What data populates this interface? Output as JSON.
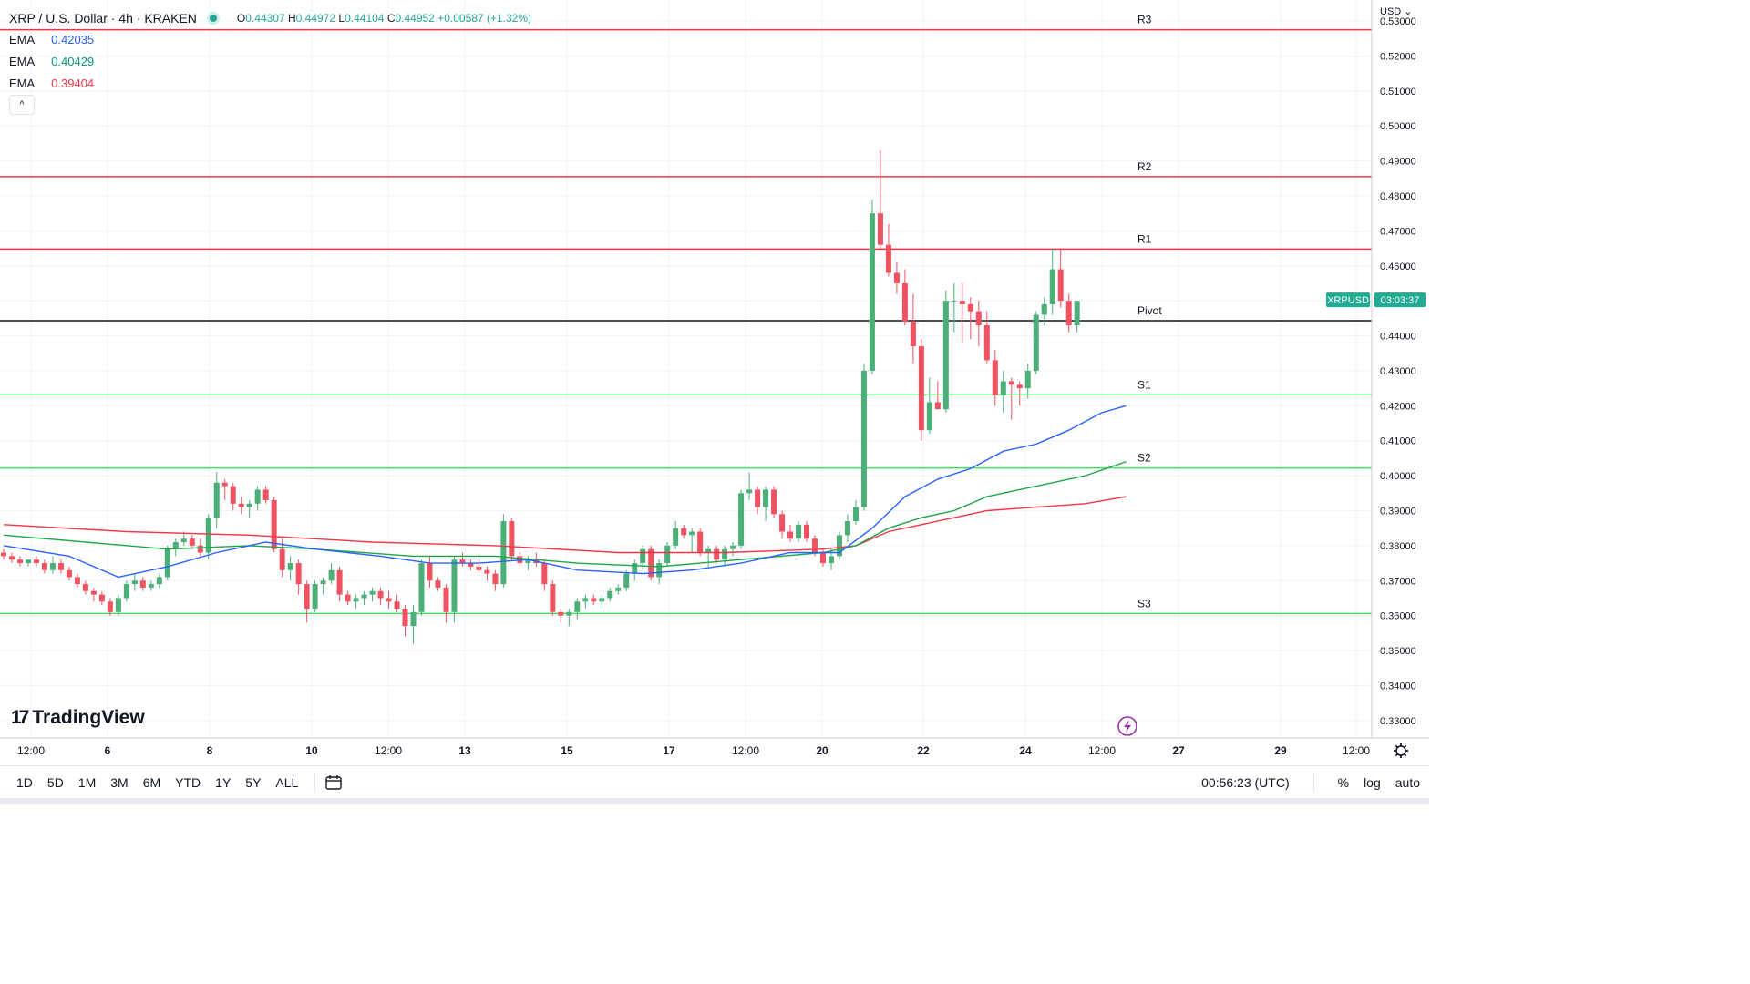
{
  "header": {
    "symbol_title": "XRP / U.S. Dollar · 4h · KRAKEN",
    "open_label": "O",
    "open": "0.44307",
    "high_label": "H",
    "high": "0.44972",
    "low_label": "L",
    "low": "0.44104",
    "close_label": "C",
    "close": "0.44952",
    "change": "+0.00587 (+1.32%)"
  },
  "indicators": [
    {
      "label": "EMA",
      "value": "0.42035",
      "color": "#2962ff"
    },
    {
      "label": "EMA",
      "value": "0.40429",
      "color": "#089981"
    },
    {
      "label": "EMA",
      "value": "0.39404",
      "color": "#f23645"
    }
  ],
  "collapse_icon": "chevron-up-icon",
  "currency": "USD",
  "price_tag": {
    "symbol": "XRPUSD",
    "countdown": "03:03:37"
  },
  "colors": {
    "up": "#4caf78",
    "down": "#ef5361",
    "resistance": "#f23645",
    "support": "#4cd964",
    "pivot": "#131722",
    "ema_fast": "#2962ff",
    "ema_mid": "#1fa64a",
    "ema_slow": "#f23645",
    "grid": "#f0f3fa"
  },
  "bottom_bar": {
    "ranges": [
      "1D",
      "5D",
      "1M",
      "3M",
      "6M",
      "YTD",
      "1Y",
      "5Y",
      "ALL"
    ],
    "compare_icon": "calendar-range-icon",
    "clock": "00:56:23 (UTC)",
    "percent": "%",
    "log": "log",
    "auto": "auto"
  },
  "logo_text": "TradingView",
  "chart_data": {
    "type": "candlestick",
    "title": "XRP / U.S. Dollar · 4h · KRAKEN",
    "y_axis": {
      "min": 0.325,
      "max": 0.536,
      "ticks": [
        "0.53000",
        "0.52000",
        "0.51000",
        "0.50000",
        "0.49000",
        "0.48000",
        "0.47000",
        "0.46000",
        "0.45000",
        "0.44000",
        "0.43000",
        "0.42000",
        "0.41000",
        "0.40000",
        "0.39000",
        "0.38000",
        "0.37000",
        "0.36000",
        "0.35000",
        "0.34000",
        "0.33000"
      ]
    },
    "x_axis": {
      "ticks": [
        "12:00",
        "6",
        "8",
        "10",
        "12:00",
        "13",
        "15",
        "17",
        "12:00",
        "20",
        "22",
        "24",
        "12:00",
        "27",
        "29",
        "12:00"
      ]
    },
    "levels": [
      {
        "name": "R3",
        "value": 0.5275,
        "kind": "resistance"
      },
      {
        "name": "R2",
        "value": 0.4855,
        "kind": "resistance"
      },
      {
        "name": "R1",
        "value": 0.4648,
        "kind": "resistance"
      },
      {
        "name": "Pivot",
        "value": 0.4443,
        "kind": "pivot"
      },
      {
        "name": "S1",
        "value": 0.4231,
        "kind": "support"
      },
      {
        "name": "S2",
        "value": 0.4022,
        "kind": "support"
      },
      {
        "name": "S3",
        "value": 0.3606,
        "kind": "support"
      }
    ],
    "candles": [
      [
        0.378,
        0.379,
        0.376,
        0.377
      ],
      [
        0.377,
        0.378,
        0.375,
        0.376
      ],
      [
        0.376,
        0.377,
        0.374,
        0.375
      ],
      [
        0.375,
        0.376,
        0.374,
        0.376
      ],
      [
        0.376,
        0.377,
        0.374,
        0.375
      ],
      [
        0.375,
        0.376,
        0.372,
        0.373
      ],
      [
        0.373,
        0.377,
        0.372,
        0.375
      ],
      [
        0.375,
        0.376,
        0.372,
        0.373
      ],
      [
        0.373,
        0.374,
        0.37,
        0.371
      ],
      [
        0.371,
        0.372,
        0.368,
        0.369
      ],
      [
        0.369,
        0.37,
        0.366,
        0.367
      ],
      [
        0.367,
        0.368,
        0.364,
        0.366
      ],
      [
        0.366,
        0.367,
        0.363,
        0.364
      ],
      [
        0.364,
        0.365,
        0.36,
        0.361
      ],
      [
        0.361,
        0.366,
        0.36,
        0.365
      ],
      [
        0.365,
        0.37,
        0.364,
        0.369
      ],
      [
        0.369,
        0.372,
        0.367,
        0.37
      ],
      [
        0.37,
        0.371,
        0.367,
        0.368
      ],
      [
        0.368,
        0.37,
        0.367,
        0.369
      ],
      [
        0.369,
        0.372,
        0.368,
        0.371
      ],
      [
        0.371,
        0.38,
        0.37,
        0.379
      ],
      [
        0.379,
        0.382,
        0.377,
        0.381
      ],
      [
        0.381,
        0.384,
        0.38,
        0.382
      ],
      [
        0.382,
        0.383,
        0.379,
        0.38
      ],
      [
        0.38,
        0.382,
        0.377,
        0.378
      ],
      [
        0.378,
        0.389,
        0.376,
        0.388
      ],
      [
        0.388,
        0.401,
        0.385,
        0.398
      ],
      [
        0.398,
        0.399,
        0.393,
        0.397
      ],
      [
        0.397,
        0.398,
        0.39,
        0.392
      ],
      [
        0.392,
        0.394,
        0.389,
        0.391
      ],
      [
        0.391,
        0.393,
        0.388,
        0.392
      ],
      [
        0.392,
        0.397,
        0.39,
        0.396
      ],
      [
        0.396,
        0.397,
        0.392,
        0.393
      ],
      [
        0.393,
        0.394,
        0.378,
        0.379
      ],
      [
        0.379,
        0.382,
        0.371,
        0.373
      ],
      [
        0.373,
        0.377,
        0.37,
        0.375
      ],
      [
        0.375,
        0.376,
        0.366,
        0.369
      ],
      [
        0.369,
        0.37,
        0.358,
        0.362
      ],
      [
        0.362,
        0.37,
        0.361,
        0.369
      ],
      [
        0.369,
        0.371,
        0.366,
        0.37
      ],
      [
        0.37,
        0.375,
        0.369,
        0.373
      ],
      [
        0.373,
        0.374,
        0.364,
        0.366
      ],
      [
        0.366,
        0.367,
        0.363,
        0.364
      ],
      [
        0.364,
        0.366,
        0.362,
        0.365
      ],
      [
        0.365,
        0.367,
        0.363,
        0.366
      ],
      [
        0.366,
        0.368,
        0.364,
        0.367
      ],
      [
        0.367,
        0.368,
        0.363,
        0.365
      ],
      [
        0.365,
        0.367,
        0.362,
        0.364
      ],
      [
        0.364,
        0.366,
        0.361,
        0.362
      ],
      [
        0.362,
        0.363,
        0.354,
        0.357
      ],
      [
        0.357,
        0.363,
        0.352,
        0.361
      ],
      [
        0.361,
        0.376,
        0.36,
        0.375
      ],
      [
        0.375,
        0.377,
        0.368,
        0.37
      ],
      [
        0.37,
        0.371,
        0.367,
        0.368
      ],
      [
        0.368,
        0.369,
        0.358,
        0.361
      ],
      [
        0.361,
        0.377,
        0.358,
        0.376
      ],
      [
        0.376,
        0.378,
        0.374,
        0.375
      ],
      [
        0.375,
        0.376,
        0.373,
        0.374
      ],
      [
        0.374,
        0.376,
        0.372,
        0.373
      ],
      [
        0.373,
        0.374,
        0.37,
        0.372
      ],
      [
        0.372,
        0.373,
        0.367,
        0.369
      ],
      [
        0.369,
        0.389,
        0.368,
        0.387
      ],
      [
        0.387,
        0.388,
        0.376,
        0.377
      ],
      [
        0.377,
        0.378,
        0.374,
        0.375
      ],
      [
        0.375,
        0.377,
        0.373,
        0.376
      ],
      [
        0.376,
        0.378,
        0.374,
        0.375
      ],
      [
        0.375,
        0.376,
        0.367,
        0.369
      ],
      [
        0.369,
        0.37,
        0.36,
        0.361
      ],
      [
        0.361,
        0.362,
        0.358,
        0.36
      ],
      [
        0.36,
        0.362,
        0.357,
        0.361
      ],
      [
        0.361,
        0.365,
        0.359,
        0.364
      ],
      [
        0.364,
        0.366,
        0.362,
        0.365
      ],
      [
        0.365,
        0.366,
        0.363,
        0.364
      ],
      [
        0.364,
        0.366,
        0.362,
        0.365
      ],
      [
        0.365,
        0.368,
        0.364,
        0.367
      ],
      [
        0.367,
        0.369,
        0.366,
        0.368
      ],
      [
        0.368,
        0.373,
        0.367,
        0.372
      ],
      [
        0.372,
        0.376,
        0.37,
        0.375
      ],
      [
        0.375,
        0.38,
        0.373,
        0.379
      ],
      [
        0.379,
        0.38,
        0.37,
        0.371
      ],
      [
        0.371,
        0.376,
        0.369,
        0.375
      ],
      [
        0.375,
        0.381,
        0.374,
        0.38
      ],
      [
        0.38,
        0.387,
        0.379,
        0.385
      ],
      [
        0.385,
        0.386,
        0.382,
        0.383
      ],
      [
        0.383,
        0.385,
        0.378,
        0.384
      ],
      [
        0.384,
        0.385,
        0.377,
        0.378
      ],
      [
        0.378,
        0.38,
        0.374,
        0.379
      ],
      [
        0.379,
        0.38,
        0.375,
        0.376
      ],
      [
        0.376,
        0.38,
        0.374,
        0.379
      ],
      [
        0.379,
        0.381,
        0.377,
        0.38
      ],
      [
        0.38,
        0.396,
        0.379,
        0.395
      ],
      [
        0.395,
        0.401,
        0.393,
        0.396
      ],
      [
        0.396,
        0.397,
        0.389,
        0.391
      ],
      [
        0.391,
        0.397,
        0.387,
        0.396
      ],
      [
        0.396,
        0.397,
        0.388,
        0.389
      ],
      [
        0.389,
        0.39,
        0.382,
        0.384
      ],
      [
        0.384,
        0.386,
        0.381,
        0.382
      ],
      [
        0.382,
        0.387,
        0.381,
        0.386
      ],
      [
        0.386,
        0.387,
        0.381,
        0.382
      ],
      [
        0.382,
        0.383,
        0.377,
        0.378
      ],
      [
        0.378,
        0.379,
        0.374,
        0.375
      ],
      [
        0.375,
        0.379,
        0.373,
        0.377
      ],
      [
        0.377,
        0.384,
        0.376,
        0.383
      ],
      [
        0.383,
        0.389,
        0.381,
        0.387
      ],
      [
        0.387,
        0.393,
        0.386,
        0.391
      ],
      [
        0.391,
        0.432,
        0.39,
        0.43
      ],
      [
        0.43,
        0.479,
        0.429,
        0.475
      ],
      [
        0.475,
        0.493,
        0.465,
        0.466
      ],
      [
        0.466,
        0.472,
        0.457,
        0.458
      ],
      [
        0.458,
        0.461,
        0.452,
        0.455
      ],
      [
        0.455,
        0.459,
        0.443,
        0.444
      ],
      [
        0.444,
        0.452,
        0.432,
        0.437
      ],
      [
        0.437,
        0.439,
        0.41,
        0.413
      ],
      [
        0.413,
        0.428,
        0.412,
        0.421
      ],
      [
        0.421,
        0.427,
        0.419,
        0.419
      ],
      [
        0.419,
        0.453,
        0.418,
        0.45
      ],
      [
        0.45,
        0.455,
        0.441,
        0.45
      ],
      [
        0.45,
        0.455,
        0.438,
        0.449
      ],
      [
        0.449,
        0.451,
        0.439,
        0.447
      ],
      [
        0.447,
        0.45,
        0.437,
        0.443
      ],
      [
        0.443,
        0.447,
        0.432,
        0.433
      ],
      [
        0.433,
        0.436,
        0.42,
        0.423
      ],
      [
        0.423,
        0.43,
        0.418,
        0.427
      ],
      [
        0.427,
        0.428,
        0.416,
        0.426
      ],
      [
        0.426,
        0.427,
        0.42,
        0.425
      ],
      [
        0.425,
        0.432,
        0.422,
        0.43
      ],
      [
        0.43,
        0.447,
        0.429,
        0.446
      ],
      [
        0.446,
        0.451,
        0.443,
        0.449
      ],
      [
        0.449,
        0.465,
        0.446,
        0.459
      ],
      [
        0.459,
        0.465,
        0.448,
        0.45
      ],
      [
        0.45,
        0.452,
        0.441,
        0.443
      ],
      [
        0.443,
        0.45,
        0.441,
        0.45
      ]
    ],
    "ema_fast": [
      [
        0,
        0.38
      ],
      [
        8,
        0.377
      ],
      [
        14,
        0.371
      ],
      [
        20,
        0.374
      ],
      [
        26,
        0.378
      ],
      [
        32,
        0.381
      ],
      [
        38,
        0.379
      ],
      [
        46,
        0.377
      ],
      [
        52,
        0.375
      ],
      [
        58,
        0.375
      ],
      [
        64,
        0.376
      ],
      [
        70,
        0.373
      ],
      [
        78,
        0.372
      ],
      [
        84,
        0.373
      ],
      [
        90,
        0.375
      ],
      [
        96,
        0.378
      ],
      [
        102,
        0.378
      ],
      [
        106,
        0.385
      ],
      [
        110,
        0.394
      ],
      [
        114,
        0.399
      ],
      [
        118,
        0.402
      ],
      [
        122,
        0.407
      ],
      [
        126,
        0.409
      ],
      [
        130,
        0.413
      ],
      [
        134,
        0.418
      ],
      [
        137,
        0.42
      ]
    ],
    "ema_mid": [
      [
        0,
        0.383
      ],
      [
        10,
        0.381
      ],
      [
        20,
        0.379
      ],
      [
        30,
        0.38
      ],
      [
        38,
        0.379
      ],
      [
        50,
        0.377
      ],
      [
        60,
        0.377
      ],
      [
        70,
        0.375
      ],
      [
        80,
        0.374
      ],
      [
        90,
        0.376
      ],
      [
        100,
        0.378
      ],
      [
        104,
        0.38
      ],
      [
        108,
        0.385
      ],
      [
        112,
        0.388
      ],
      [
        116,
        0.39
      ],
      [
        120,
        0.394
      ],
      [
        124,
        0.396
      ],
      [
        128,
        0.398
      ],
      [
        132,
        0.4
      ],
      [
        137,
        0.404
      ]
    ],
    "ema_slow": [
      [
        0,
        0.386
      ],
      [
        15,
        0.384
      ],
      [
        30,
        0.383
      ],
      [
        45,
        0.381
      ],
      [
        60,
        0.38
      ],
      [
        75,
        0.378
      ],
      [
        88,
        0.378
      ],
      [
        100,
        0.379
      ],
      [
        104,
        0.38
      ],
      [
        108,
        0.384
      ],
      [
        112,
        0.386
      ],
      [
        116,
        0.388
      ],
      [
        120,
        0.39
      ],
      [
        126,
        0.391
      ],
      [
        132,
        0.392
      ],
      [
        137,
        0.394
      ]
    ]
  }
}
